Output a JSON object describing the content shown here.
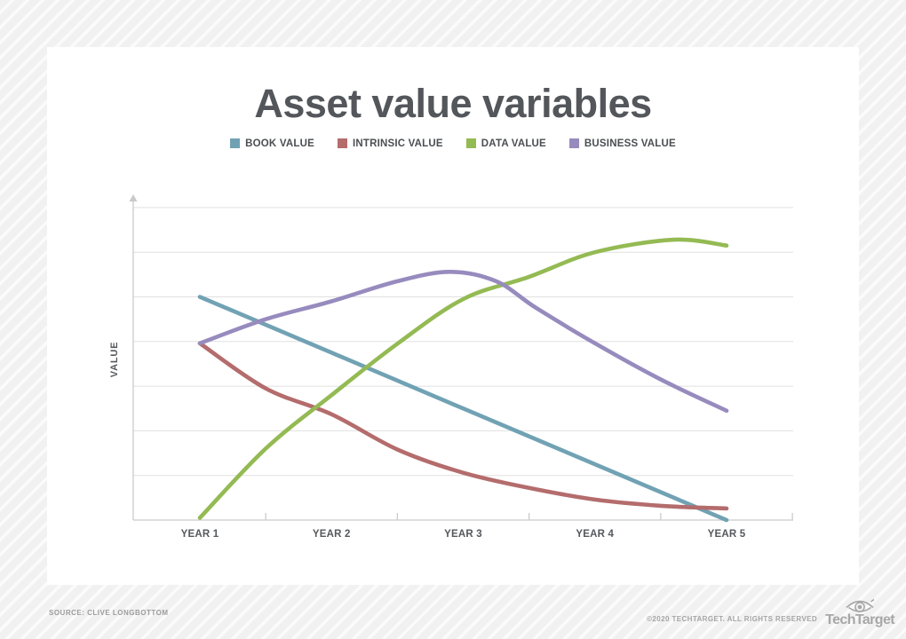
{
  "title": "Asset value variables",
  "chart_data": {
    "type": "line",
    "title": "Asset value variables",
    "categories": [
      "YEAR 1",
      "YEAR 2",
      "YEAR 3",
      "YEAR 4",
      "YEAR 5"
    ],
    "xlabel": "",
    "ylabel": "VALUE",
    "ylim": [
      0,
      7.3
    ],
    "y_tick_labels_shown": false,
    "gridlines": "horizontal",
    "legend_position": "top",
    "series": [
      {
        "name": "BOOK VALUE",
        "color": "#71a2b4",
        "values": [
          5.0,
          3.75,
          2.5,
          1.25,
          0.0
        ],
        "curve_samples": [
          [
            1,
            5.0
          ],
          [
            2,
            3.75
          ],
          [
            3,
            2.5
          ],
          [
            4,
            1.25
          ],
          [
            5,
            0.0
          ]
        ]
      },
      {
        "name": "INTRINSIC VALUE",
        "color": "#b46c6c",
        "values": [
          3.95,
          2.37,
          1.06,
          0.46,
          0.26
        ],
        "curve_samples": [
          [
            1,
            3.96
          ],
          [
            1.5,
            2.95
          ],
          [
            2,
            2.37
          ],
          [
            2.5,
            1.58
          ],
          [
            3,
            1.06
          ],
          [
            3.5,
            0.72
          ],
          [
            4,
            0.46
          ],
          [
            4.5,
            0.32
          ],
          [
            5,
            0.26
          ]
        ]
      },
      {
        "name": "DATA VALUE",
        "color": "#94ba53",
        "values": [
          0.05,
          2.8,
          4.95,
          6.0,
          6.15
        ],
        "curve_samples": [
          [
            1,
            0.05
          ],
          [
            1.5,
            1.6
          ],
          [
            2,
            2.8
          ],
          [
            2.5,
            3.95
          ],
          [
            3,
            4.95
          ],
          [
            3.5,
            5.45
          ],
          [
            4,
            6.0
          ],
          [
            4.6,
            6.28
          ],
          [
            5,
            6.15
          ]
        ]
      },
      {
        "name": "BUSINESS VALUE",
        "color": "#978bbe",
        "values": [
          3.96,
          4.9,
          5.55,
          3.96,
          2.45
        ],
        "curve_samples": [
          [
            1,
            3.96
          ],
          [
            1.5,
            4.5
          ],
          [
            2,
            4.9
          ],
          [
            2.5,
            5.35
          ],
          [
            2.9,
            5.56
          ],
          [
            3.25,
            5.35
          ],
          [
            3.55,
            4.76
          ],
          [
            4,
            3.96
          ],
          [
            4.5,
            3.15
          ],
          [
            5,
            2.45
          ]
        ]
      }
    ]
  },
  "footer": {
    "source": "SOURCE: CLIVE LONGBOTTOM",
    "copyright": "©2020 TECHTARGET. ALL RIGHTS RESERVED",
    "brand": "TechTarget"
  }
}
